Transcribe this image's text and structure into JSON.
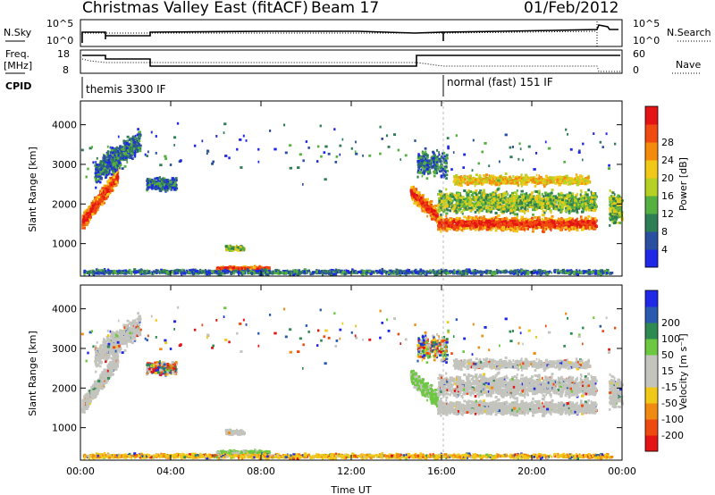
{
  "header": {
    "title": "Christmas Valley East (fitACF)",
    "beam": "Beam 17",
    "date": "01/Feb/2012"
  },
  "labels": {
    "nsky": "N.Sky",
    "nsearch": "N.Search",
    "freq": "Freq.",
    "freq_unit": "[MHz]",
    "nave": "Nave",
    "cpid": "CPID",
    "exp_one": "themis 3300 IF",
    "exp_two": "normal (fast) 151 IF",
    "noise_top": "10^5",
    "noise_bottom": "10^0",
    "noise_right_top": "10^5",
    "noise_right_bottom": "10^0",
    "freq_ticks": [
      "18",
      "8"
    ],
    "nave_ticks": [
      "60",
      "0"
    ]
  },
  "chart_data": [
    {
      "type": "heatmap",
      "name": "power",
      "ylabel": "Slant Range [km]",
      "ylim": [
        180,
        4600
      ],
      "yticks": [
        1000,
        2000,
        3000,
        4000
      ],
      "colorbar_label": "Power [dB]",
      "colorbar_ticks": [
        4,
        8,
        12,
        16,
        20,
        24,
        28
      ],
      "colorbar_colors": [
        "#1e28e6",
        "#2a4fa0",
        "#2d7d55",
        "#55b040",
        "#b6d024",
        "#f0c818",
        "#f58a0e",
        "#f04a10",
        "#e41414"
      ]
    },
    {
      "type": "heatmap",
      "name": "velocity",
      "xlabel": "Time UT",
      "ylabel": "Slant Range [km]",
      "ylim": [
        180,
        4600
      ],
      "yticks": [
        1000,
        2000,
        3000,
        4000
      ],
      "xticks": [
        "00:00",
        "04:00",
        "08:00",
        "12:00",
        "16:00",
        "20:00",
        "00:00"
      ],
      "xlim_hours": [
        0,
        24
      ],
      "colorbar_label": "Velocity [m s⁻¹]",
      "colorbar_ticks": [
        "200",
        "100",
        "50",
        "15",
        "-15",
        "-50",
        "-100",
        "-200"
      ],
      "colorbar_colors": [
        "#1e28e6",
        "#2a5ab0",
        "#2d8a50",
        "#6cc840",
        "#c4c4be",
        "#c4c4be",
        "#f0c818",
        "#f08a10",
        "#ee4a10",
        "#e41414"
      ]
    }
  ]
}
